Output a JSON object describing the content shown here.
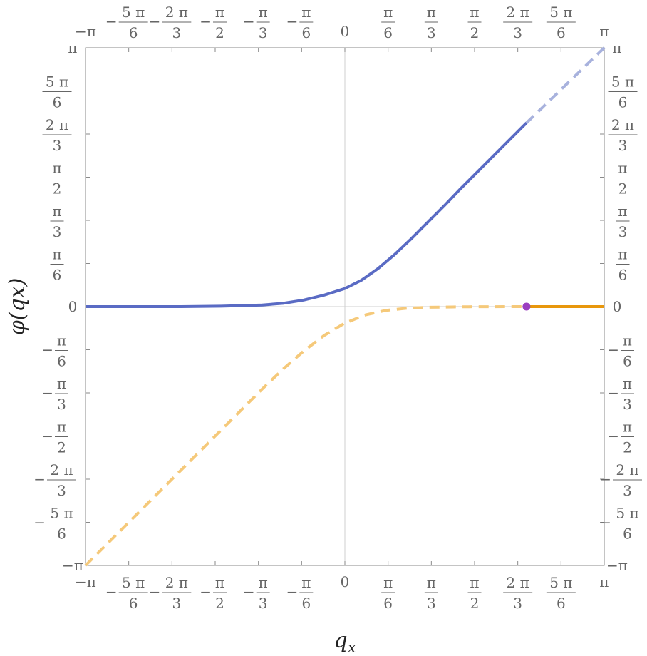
{
  "chart_data": {
    "type": "line",
    "xlabel": "q_x",
    "ylabel": "φ(q_x)",
    "xlim": [
      -3.14159,
      3.14159
    ],
    "ylim": [
      -3.14159,
      3.14159
    ],
    "grid": false,
    "ticks": [
      {
        "value": -3.14159,
        "sign": "−",
        "num": "π",
        "den": ""
      },
      {
        "value": -2.61799,
        "sign": "−",
        "num": "5 π",
        "den": "6"
      },
      {
        "value": -2.0944,
        "sign": "−",
        "num": "2 π",
        "den": "3"
      },
      {
        "value": -1.5708,
        "sign": "−",
        "num": "π",
        "den": "2"
      },
      {
        "value": -1.0472,
        "sign": "−",
        "num": "π",
        "den": "3"
      },
      {
        "value": -0.5236,
        "sign": "−",
        "num": "π",
        "den": "6"
      },
      {
        "value": 0,
        "sign": "",
        "num": "0",
        "den": ""
      },
      {
        "value": 0.5236,
        "sign": "",
        "num": "π",
        "den": "6"
      },
      {
        "value": 1.0472,
        "sign": "",
        "num": "π",
        "den": "3"
      },
      {
        "value": 1.5708,
        "sign": "",
        "num": "π",
        "den": "2"
      },
      {
        "value": 2.0944,
        "sign": "",
        "num": "2 π",
        "den": "3"
      },
      {
        "value": 2.61799,
        "sign": "",
        "num": "5 π",
        "den": "6"
      },
      {
        "value": 3.14159,
        "sign": "",
        "num": "π",
        "den": ""
      }
    ],
    "series": [
      {
        "style": "solid",
        "color": "#5A6BC4",
        "x": [
          -3.1416,
          -2.5,
          -2.0,
          -1.5,
          -1.0,
          -0.75,
          -0.5,
          -0.25,
          0,
          0.2,
          0.4,
          0.6,
          0.8,
          1.0,
          1.2,
          1.4,
          1.6,
          1.8,
          2.0,
          2.2
        ],
        "y": [
          0,
          0,
          0,
          0.005,
          0.02,
          0.04,
          0.08,
          0.14,
          0.22,
          0.32,
          0.46,
          0.63,
          0.82,
          1.02,
          1.22,
          1.43,
          1.63,
          1.83,
          2.03,
          2.23
        ]
      },
      {
        "style": "dashed",
        "color": "#A8B2DD",
        "x": [
          2.2,
          3.1416
        ],
        "y": [
          2.23,
          3.1416
        ]
      },
      {
        "style": "dashed",
        "color": "#F5C97A",
        "x": [
          -3.1416,
          -2.6,
          -2.0,
          -1.5,
          -1.0,
          -0.75,
          -0.5,
          -0.25,
          0,
          0.25,
          0.5,
          0.75,
          1.0,
          1.5,
          2.0,
          2.2
        ],
        "y": [
          -3.1416,
          -2.6,
          -2.0,
          -1.5,
          -1.0,
          -0.76,
          -0.54,
          -0.35,
          -0.2,
          -0.1,
          -0.045,
          -0.02,
          -0.008,
          -0.002,
          0,
          0
        ]
      },
      {
        "style": "solid",
        "color": "#E8970C",
        "x": [
          2.2,
          3.1416
        ],
        "y": [
          0,
          0
        ]
      }
    ],
    "points": [
      {
        "x": 2.2,
        "y": 0,
        "color": "#9B3FC0"
      }
    ]
  }
}
